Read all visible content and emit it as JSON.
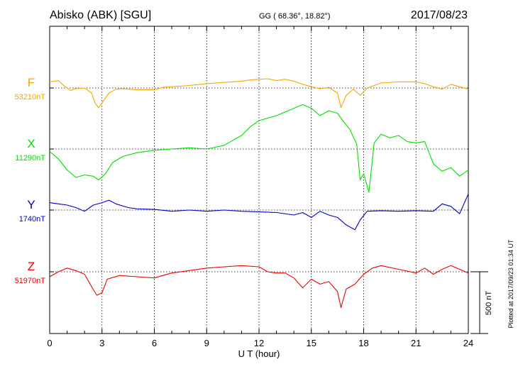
{
  "header": {
    "station": "Abisko (ABK)  [SGU]",
    "coords": "GG ( 68.36°,  18.82°)",
    "date": "2017/08/23"
  },
  "footer": {
    "plotted": "Plotted at 2017/09/23 01:34 UT"
  },
  "scale_bar": {
    "label": "500 nT"
  },
  "colors": {
    "F": "#f5a700",
    "X": "#00dd00",
    "Y": "#0000cc",
    "Z": "#ee0000"
  },
  "chart_data": {
    "type": "line",
    "title": "Abisko (ABK)  [SGU]",
    "xlabel": "U T (hour)",
    "ylabel": "",
    "xlim": [
      0,
      24
    ],
    "x_ticks": [
      0,
      3,
      6,
      9,
      12,
      15,
      18,
      21,
      24
    ],
    "x_tick_labels": [
      "0",
      "3",
      "6",
      "9",
      "12",
      "15",
      "18",
      "21",
      "24"
    ],
    "grid": true,
    "nT_per_scale_bar": 500,
    "series": [
      {
        "name": "F",
        "baseline_label": "53210nT",
        "baseline_nT": 53210,
        "unit": "nT offset from baseline",
        "points": [
          [
            0,
            50
          ],
          [
            0.5,
            60
          ],
          [
            0.8,
            20
          ],
          [
            1.2,
            -20
          ],
          [
            1.5,
            -5
          ],
          [
            2.0,
            0
          ],
          [
            2.4,
            -40
          ],
          [
            2.6,
            -120
          ],
          [
            2.8,
            -160
          ],
          [
            3.0,
            -120
          ],
          [
            3.4,
            -40
          ],
          [
            3.8,
            -10
          ],
          [
            4.2,
            -5
          ],
          [
            5.0,
            -15
          ],
          [
            6.0,
            -15
          ],
          [
            6.5,
            5
          ],
          [
            7.0,
            10
          ],
          [
            8.0,
            20
          ],
          [
            9.0,
            35
          ],
          [
            10.0,
            45
          ],
          [
            11.0,
            55
          ],
          [
            11.5,
            65
          ],
          [
            12.0,
            70
          ],
          [
            12.5,
            75
          ],
          [
            13.0,
            60
          ],
          [
            13.5,
            70
          ],
          [
            14.0,
            55
          ],
          [
            14.5,
            30
          ],
          [
            15.0,
            10
          ],
          [
            15.5,
            -5
          ],
          [
            16.0,
            5
          ],
          [
            16.5,
            -40
          ],
          [
            16.7,
            -160
          ],
          [
            17.0,
            -60
          ],
          [
            17.4,
            -10
          ],
          [
            17.8,
            -60
          ],
          [
            18.2,
            0
          ],
          [
            18.6,
            20
          ],
          [
            19.0,
            40
          ],
          [
            20.0,
            50
          ],
          [
            21.0,
            50
          ],
          [
            21.5,
            35
          ],
          [
            22.0,
            10
          ],
          [
            22.5,
            -10
          ],
          [
            23.0,
            30
          ],
          [
            23.5,
            10
          ],
          [
            24.0,
            -10
          ]
        ]
      },
      {
        "name": "X",
        "baseline_label": "11290nT",
        "baseline_nT": 11290,
        "unit": "nT offset from baseline",
        "points": [
          [
            0,
            -20
          ],
          [
            0.5,
            -80
          ],
          [
            1.0,
            -170
          ],
          [
            1.5,
            -230
          ],
          [
            2.0,
            -210
          ],
          [
            2.5,
            -220
          ],
          [
            2.8,
            -250
          ],
          [
            3.2,
            -200
          ],
          [
            3.6,
            -110
          ],
          [
            4.2,
            -60
          ],
          [
            5.0,
            -30
          ],
          [
            6.0,
            -10
          ],
          [
            7.0,
            0
          ],
          [
            8.0,
            10
          ],
          [
            9.0,
            0
          ],
          [
            10.0,
            30
          ],
          [
            11.0,
            110
          ],
          [
            11.5,
            180
          ],
          [
            12.0,
            230
          ],
          [
            13.0,
            270
          ],
          [
            13.5,
            300
          ],
          [
            14.0,
            330
          ],
          [
            14.5,
            360
          ],
          [
            15.0,
            330
          ],
          [
            15.5,
            270
          ],
          [
            16.0,
            310
          ],
          [
            16.5,
            290
          ],
          [
            16.8,
            230
          ],
          [
            17.2,
            160
          ],
          [
            17.6,
            40
          ],
          [
            17.8,
            -250
          ],
          [
            18.0,
            -200
          ],
          [
            18.3,
            -350
          ],
          [
            18.6,
            50
          ],
          [
            19.0,
            120
          ],
          [
            19.5,
            90
          ],
          [
            20.0,
            110
          ],
          [
            20.5,
            60
          ],
          [
            21.0,
            50
          ],
          [
            21.5,
            60
          ],
          [
            22.0,
            -120
          ],
          [
            22.5,
            -180
          ],
          [
            23.0,
            -150
          ],
          [
            23.5,
            -220
          ],
          [
            24.0,
            -170
          ]
        ]
      },
      {
        "name": "Y",
        "baseline_label": "1740nT",
        "baseline_nT": 1740,
        "unit": "nT offset from baseline",
        "points": [
          [
            0,
            60
          ],
          [
            0.5,
            50
          ],
          [
            1.0,
            40
          ],
          [
            1.5,
            20
          ],
          [
            2.0,
            -10
          ],
          [
            2.5,
            40
          ],
          [
            3.0,
            60
          ],
          [
            3.4,
            80
          ],
          [
            3.8,
            50
          ],
          [
            4.5,
            20
          ],
          [
            5.0,
            10
          ],
          [
            6.0,
            5
          ],
          [
            7.0,
            -10
          ],
          [
            8.0,
            0
          ],
          [
            9.0,
            -10
          ],
          [
            10.0,
            0
          ],
          [
            11.0,
            -10
          ],
          [
            12.0,
            -15
          ],
          [
            13.0,
            -20
          ],
          [
            14.0,
            -40
          ],
          [
            14.5,
            -20
          ],
          [
            15.0,
            -60
          ],
          [
            15.5,
            -10
          ],
          [
            16.0,
            -40
          ],
          [
            16.5,
            -60
          ],
          [
            17.0,
            -120
          ],
          [
            17.5,
            -160
          ],
          [
            17.8,
            -80
          ],
          [
            18.2,
            -10
          ],
          [
            19.0,
            -5
          ],
          [
            20.0,
            -10
          ],
          [
            21.0,
            -5
          ],
          [
            22.0,
            -10
          ],
          [
            22.5,
            50
          ],
          [
            23.0,
            30
          ],
          [
            23.5,
            -30
          ],
          [
            24.0,
            130
          ]
        ]
      },
      {
        "name": "Z",
        "baseline_label": "51970nT",
        "baseline_nT": 51970,
        "unit": "nT offset from baseline",
        "points": [
          [
            0,
            -40
          ],
          [
            0.5,
            0
          ],
          [
            1.0,
            30
          ],
          [
            1.5,
            10
          ],
          [
            2.0,
            -20
          ],
          [
            2.4,
            -120
          ],
          [
            2.7,
            -190
          ],
          [
            3.0,
            -170
          ],
          [
            3.3,
            -60
          ],
          [
            4.0,
            -30
          ],
          [
            5.0,
            -40
          ],
          [
            6.0,
            -50
          ],
          [
            7.0,
            -10
          ],
          [
            8.0,
            10
          ],
          [
            9.0,
            30
          ],
          [
            10.0,
            40
          ],
          [
            11.0,
            50
          ],
          [
            12.0,
            40
          ],
          [
            12.5,
            0
          ],
          [
            13.0,
            -10
          ],
          [
            13.5,
            -10
          ],
          [
            14.0,
            -50
          ],
          [
            14.5,
            -130
          ],
          [
            15.0,
            -60
          ],
          [
            15.5,
            -100
          ],
          [
            16.0,
            -80
          ],
          [
            16.5,
            -160
          ],
          [
            16.7,
            -290
          ],
          [
            17.0,
            -140
          ],
          [
            17.5,
            -100
          ],
          [
            18.0,
            -20
          ],
          [
            18.5,
            30
          ],
          [
            19.0,
            50
          ],
          [
            20.0,
            20
          ],
          [
            21.0,
            -10
          ],
          [
            21.5,
            30
          ],
          [
            22.0,
            -20
          ],
          [
            22.5,
            20
          ],
          [
            23.0,
            50
          ],
          [
            23.5,
            20
          ],
          [
            24.0,
            -10
          ]
        ]
      }
    ]
  }
}
